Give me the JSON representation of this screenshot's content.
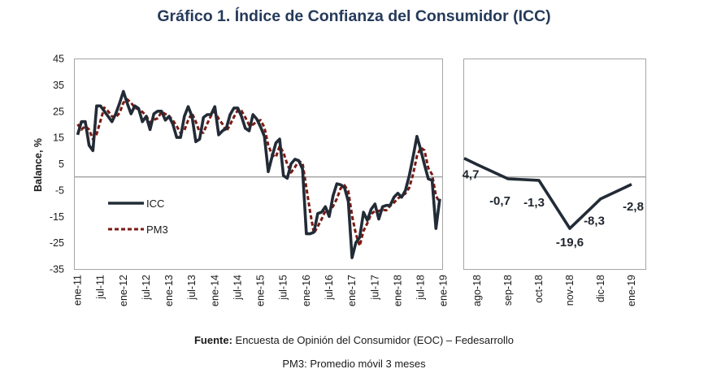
{
  "title": "Gráfico 1. Índice de Confianza del Consumidor (ICC)",
  "footer": {
    "source_label": "Fuente:",
    "source_text": " Encuesta de Opinión del Consumidor (EOC) – Fedesarrollo",
    "note": "PM3: Promedio móvil 3 meses"
  },
  "colors": {
    "icc": "#222b36",
    "pm3": "#7b1a14",
    "axis": "#a6a6a6",
    "zero": "#7f7f7f",
    "title": "#253a5a"
  },
  "chart_data": [
    {
      "type": "line",
      "title": "",
      "ylabel": "Balance, %",
      "xlabel": "",
      "ylim": [
        -35,
        45
      ],
      "yticks": [
        45,
        35,
        25,
        15,
        5,
        -5,
        -15,
        -25,
        -35
      ],
      "xtick_labels": [
        "ene-11",
        "jul-11",
        "ene-12",
        "jul-12",
        "ene-13",
        "jul-13",
        "ene-14",
        "jul-14",
        "ene-15",
        "jul-15",
        "ene-16",
        "jul-16",
        "ene-17",
        "jul-17",
        "ene-18",
        "jul-18",
        "ene-19"
      ],
      "x_start": "ene-11",
      "x_frequency": "monthly",
      "legend": {
        "position": "bottom-left",
        "entries": [
          "ICC",
          "PM3"
        ]
      },
      "grid": false,
      "series": [
        {
          "name": "ICC",
          "style": "solid",
          "values": [
            16,
            21,
            21,
            12,
            10,
            27,
            27,
            25,
            23,
            21,
            24,
            28,
            32.5,
            28,
            24,
            27,
            26,
            21,
            23,
            18,
            24,
            25,
            25,
            21.6,
            23,
            20,
            15,
            15,
            23,
            26.7,
            23,
            13.4,
            14.4,
            22.6,
            23.7,
            23.7,
            26.7,
            16,
            17.5,
            18.5,
            23.7,
            26.2,
            26.2,
            23,
            18.5,
            17.5,
            23.7,
            22,
            19,
            15.4,
            2,
            7.7,
            12.9,
            14.4,
            0.5,
            -0.5,
            5,
            6.7,
            6.2,
            3,
            -21.6,
            -21.6,
            -21,
            -13.9,
            -13.4,
            -11.3,
            -15,
            -7.2,
            -2.6,
            -3,
            -4,
            -9.3,
            -30.7,
            -25,
            -23,
            -13.4,
            -16.5,
            -12.3,
            -10.3,
            -16,
            -11.3,
            -10.8,
            -10.8,
            -7.7,
            -6.2,
            -7.7,
            -5.1,
            0.5,
            7.7,
            15.4,
            10.3,
            4.7,
            -0.7,
            -1.3,
            -19.6,
            -8.3
          ]
        },
        {
          "name": "PM3",
          "style": "dashed",
          "values": [
            20,
            18,
            19.3,
            18,
            14.3,
            16.3,
            21.3,
            26.3,
            25,
            23,
            22.7,
            24.3,
            28.2,
            29.5,
            28.2,
            26.3,
            25.7,
            24.7,
            23.3,
            20.7,
            21.7,
            22.3,
            24.7,
            23.9,
            23.2,
            21.5,
            19.3,
            16.7,
            17.7,
            21.6,
            24.2,
            21,
            17,
            16.8,
            20.2,
            23.3,
            24.7,
            22.1,
            20.1,
            17.3,
            19.9,
            22.8,
            25.4,
            25.1,
            22.6,
            19.7,
            19.9,
            21.1,
            21.6,
            18.8,
            12.1,
            8.4,
            7.5,
            11.7,
            9.3,
            4.8,
            1.7,
            3.7,
            6,
            5.3,
            -4.1,
            -13.4,
            -21.4,
            -18.8,
            -16.1,
            -12.9,
            -13.2,
            -11.2,
            -8.3,
            -4.3,
            -3.2,
            -5.4,
            -14.7,
            -21.7,
            -26.2,
            -20.5,
            -17.6,
            -14.1,
            -13,
            -12.9,
            -12.5,
            -12.7,
            -11,
            -9.8,
            -8.2,
            -7.2,
            -6.3,
            -4.1,
            1,
            7.9,
            11.1,
            10.1,
            3.4,
            0.9,
            -7.2,
            -9.7
          ]
        }
      ]
    },
    {
      "type": "line",
      "title": "",
      "ylim": [
        -35,
        45
      ],
      "categories": [
        "ago-18",
        "sep-18",
        "oct-18",
        "nov-18",
        "dic-18",
        "ene-19"
      ],
      "series": [
        {
          "name": "ICC",
          "values": [
            4.7,
            -0.7,
            -1.3,
            -19.6,
            -8.3,
            -2.8
          ],
          "prev_value": 10.3
        }
      ],
      "data_labels": [
        "4,7",
        "-0,7",
        "-1,3",
        "-19,6",
        "-8,3",
        "-2,8"
      ],
      "grid": false
    }
  ]
}
